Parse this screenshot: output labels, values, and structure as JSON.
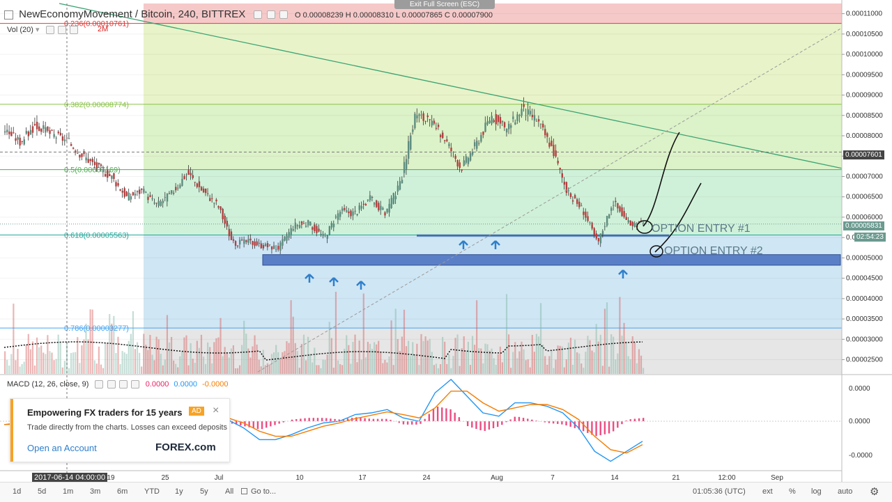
{
  "header": {
    "symbol_title": "NewEconomyMovement / Bitcoin, 240, BITTREX",
    "ohlc": "O 0.00008239 H 0.00008310 L 0.00007865 C 0.00007900",
    "exit_fullscreen": "Exit Full Screen (ESC)",
    "vol_label": "Vol (20)"
  },
  "colors": {
    "up": "#7cb5a4",
    "down": "#d75a5a",
    "fib_0236": "#e53935",
    "fib_0382": "#8bc34a",
    "fib_05": "#4caf50",
    "fib_0618": "#26a69a",
    "fib_0786": "#42a5f5",
    "trendline": "#3aa372",
    "support_box": "#5b7fc7",
    "arrow": "#2f7fcc",
    "macd_line": "#2196f3",
    "signal_line": "#f57c00",
    "histogram": "#e91e63"
  },
  "chart_data": {
    "type": "candlestick",
    "title": "NewEconomyMovement / Bitcoin, 240, BITTREX",
    "y_axis": {
      "ticks": [
        "0.00011000",
        "0.00010500",
        "0.00010000",
        "0.00009500",
        "0.00009000",
        "0.00008500",
        "0.00008000",
        "0.00007500",
        "0.00007000",
        "0.00006500",
        "0.00006000",
        "0.00005500",
        "0.00005000",
        "0.00004500",
        "0.00004000",
        "0.00003500",
        "0.00003000",
        "0.00002500"
      ],
      "range": [
        2.15e-05,
        0.0001125
      ]
    },
    "x_axis": {
      "ticks": [
        "19",
        "25",
        "Jul",
        "10",
        "17",
        "24",
        "Aug",
        "7",
        "14",
        "21",
        "12:00",
        "Sep"
      ],
      "cursor_label": "2017-06-14 04:00:00"
    },
    "price_series": {
      "x": [
        "Jun 10",
        "Jun 13",
        "Jun 15",
        "Jun 17",
        "Jun 19",
        "Jun 21",
        "Jun 23",
        "Jun 25",
        "Jun 27",
        "Jun 29",
        "Jul 1",
        "Jul 3",
        "Jul 5",
        "Jul 7",
        "Jul 9",
        "Jul 11",
        "Jul 13",
        "Jul 15",
        "Jul 17",
        "Jul 19",
        "Jul 21",
        "Jul 23",
        "Jul 25",
        "Jul 27",
        "Jul 29",
        "Jul 31",
        "Aug 1",
        "Aug 2",
        "Aug 3",
        "Aug 4",
        "Aug 5",
        "Aug 6",
        "Aug 7",
        "Aug 8",
        "Aug 9",
        "Aug 10",
        "Aug 11",
        "Aug 12",
        "Aug 13",
        "Aug 14",
        "Aug 15",
        "Aug 16",
        "Aug 17"
      ],
      "close": [
        8.15e-05,
        7.85e-05,
        8.25e-05,
        8.05e-05,
        7.9e-05,
        7.55e-05,
        7.25e-05,
        7e-05,
        6.5e-05,
        6.65e-05,
        6.3e-05,
        6.6e-05,
        7.1e-05,
        6.65e-05,
        6.3e-05,
        5.35e-05,
        5.4e-05,
        5.3e-05,
        5.25e-05,
        5.8e-05,
        5.85e-05,
        5.5e-05,
        6.15e-05,
        6.1e-05,
        6.45e-05,
        6.1e-05,
        6.8e-05,
        8.55e-05,
        8.3e-05,
        7.9e-05,
        7.2e-05,
        7.8e-05,
        8.5e-05,
        8.15e-05,
        8.65e-05,
        8.4e-05,
        7.7e-05,
        6.6e-05,
        6.2e-05,
        5.35e-05,
        6.4e-05,
        5.85e-05,
        5.83e-05
      ]
    },
    "current_price": "0.00007601",
    "last_price": "0.00005831",
    "countdown": "02:54:23",
    "fibonacci": [
      {
        "label": "0.236(0.00010761)",
        "level": 0.00010761
      },
      {
        "label": "0.382(0.00008774)",
        "level": 8.774e-05
      },
      {
        "label": "0.5(0.00007169)",
        "level": 7.169e-05
      },
      {
        "label": "0.618(0.00005563)",
        "level": 5.563e-05
      },
      {
        "label": "0.786(0.00003277)",
        "level": 3.277e-05
      }
    ],
    "annotations": [
      "OPTION ENTRY #1",
      "OPTION ENTRY #2"
    ],
    "volume_overlay_label": "2M"
  },
  "macd": {
    "label": "MACD (12, 26, close, 9)",
    "value1": "0.0000",
    "value2": "0.0000",
    "value3": "-0.0000",
    "ticks": [
      "0.0000",
      "0.0000",
      "-0.0000"
    ],
    "macd_line": [
      -0.1,
      -0.05,
      0.0,
      0.05,
      0.0,
      -0.1,
      -0.2,
      -0.15,
      -0.1,
      -0.05,
      0.05,
      0.0,
      0.1,
      0.2,
      0.05,
      -0.2,
      -0.55,
      -0.55,
      -0.4,
      -0.2,
      -0.05,
      0.0,
      0.2,
      0.25,
      0.35,
      0.1,
      0.0,
      0.85,
      1.25,
      0.75,
      0.25,
      0.15,
      0.55,
      0.55,
      0.45,
      0.25,
      -0.2,
      -0.9,
      -1.2,
      -0.9,
      -0.6
    ],
    "signal_line": [
      -0.1,
      -0.08,
      -0.05,
      0.0,
      0.02,
      -0.03,
      -0.1,
      -0.14,
      -0.12,
      -0.08,
      0.0,
      0.02,
      0.05,
      0.12,
      0.1,
      -0.05,
      -0.3,
      -0.45,
      -0.45,
      -0.3,
      -0.15,
      -0.05,
      0.08,
      0.18,
      0.28,
      0.2,
      0.1,
      0.4,
      0.9,
      0.9,
      0.55,
      0.3,
      0.4,
      0.5,
      0.5,
      0.35,
      0.05,
      -0.45,
      -0.85,
      -0.95,
      -0.7
    ]
  },
  "ad": {
    "title": "Empowering FX traders for 15 years",
    "badge": "AD",
    "subtitle": "Trade directly from the charts. Losses can exceed deposits",
    "cta": "Open an Account",
    "logo": "FOREX.com"
  },
  "bottom_bar": {
    "timeframes": [
      "1d",
      "5d",
      "1m",
      "3m",
      "6m",
      "YTD",
      "1y",
      "5y",
      "All"
    ],
    "goto": "Go to...",
    "clock": "01:05:36 (UTC)",
    "opts": [
      "ext",
      "%",
      "log",
      "auto"
    ]
  }
}
